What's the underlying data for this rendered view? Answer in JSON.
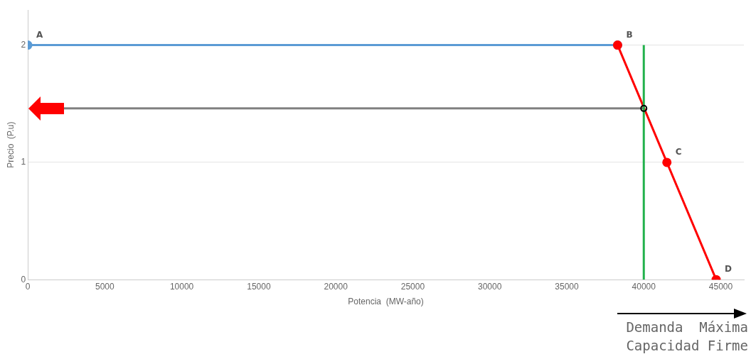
{
  "chart_data": {
    "type": "line",
    "xlabel": "Potencia  (MW-año)",
    "ylabel": "Precio  (P.u)",
    "xlim": [
      0,
      46500
    ],
    "xticks": [
      0,
      5000,
      10000,
      15000,
      20000,
      25000,
      30000,
      35000,
      40000,
      45000
    ],
    "ylim": [
      0,
      2.3
    ],
    "yticks": [
      0,
      1,
      2
    ],
    "grid": "y",
    "legend": false,
    "series": [
      {
        "color": "#5b9bd5",
        "x": [
          0,
          38300
        ],
        "values": [
          2,
          2
        ],
        "marker": "circle"
      },
      {
        "color": "#ff0000",
        "x": [
          38300,
          41500,
          44700
        ],
        "values": [
          2,
          1,
          0
        ],
        "marker": "circle"
      },
      {
        "color": "#808080",
        "x": [
          2300,
          40000
        ],
        "values": [
          1.46,
          1.46
        ],
        "marker": "none"
      },
      {
        "color": "#22b14c",
        "x": [
          40000,
          40000
        ],
        "values": [
          0,
          2
        ],
        "marker": "none"
      },
      {
        "type": "scatter",
        "color": "#000000",
        "x": [
          40000
        ],
        "values": [
          1.46
        ],
        "marker": "circle"
      }
    ],
    "annotations": [
      {
        "text": "A",
        "x": 0,
        "y": 2
      },
      {
        "text": "B",
        "x": 38300,
        "y": 2
      },
      {
        "text": "C",
        "x": 41500,
        "y": 1
      },
      {
        "text": "D",
        "x": 44700,
        "y": 0
      },
      "Demanda  Máxima",
      "Capacidad Firme"
    ]
  }
}
